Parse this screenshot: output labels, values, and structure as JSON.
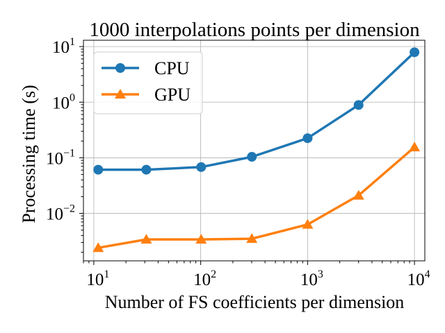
{
  "chart_data": {
    "type": "line",
    "title": "1000 interpolations points per dimension",
    "xlabel": "Number of FS coefficients per dimension",
    "ylabel": "Processing time (s)",
    "xscale": "log",
    "yscale": "log",
    "xlim": [
      8,
      12500
    ],
    "ylim": [
      0.0014,
      13
    ],
    "xticks": [
      {
        "value": 10,
        "base": "10",
        "exp": "1"
      },
      {
        "value": 100,
        "base": "10",
        "exp": "2"
      },
      {
        "value": 1000,
        "base": "10",
        "exp": "3"
      },
      {
        "value": 10000,
        "base": "10",
        "exp": "4"
      }
    ],
    "yticks": [
      {
        "value": 0.01,
        "base": "10",
        "exp": "−2"
      },
      {
        "value": 0.1,
        "base": "10",
        "exp": "−1"
      },
      {
        "value": 1,
        "base": "10",
        "exp": "0"
      },
      {
        "value": 10,
        "base": "10",
        "exp": "1"
      }
    ],
    "grid": true,
    "legend_position": "top-left",
    "x": [
      11,
      31,
      101,
      301,
      1001,
      3001,
      10001
    ],
    "series": [
      {
        "name": "CPU",
        "color": "#1f77b4",
        "marker": "circle",
        "values": [
          0.061,
          0.061,
          0.068,
          0.104,
          0.225,
          0.89,
          7.9
        ]
      },
      {
        "name": "GPU",
        "color": "#ff7f0e",
        "marker": "triangle",
        "values": [
          0.0024,
          0.0034,
          0.0034,
          0.0035,
          0.0063,
          0.021,
          0.155
        ]
      }
    ]
  }
}
